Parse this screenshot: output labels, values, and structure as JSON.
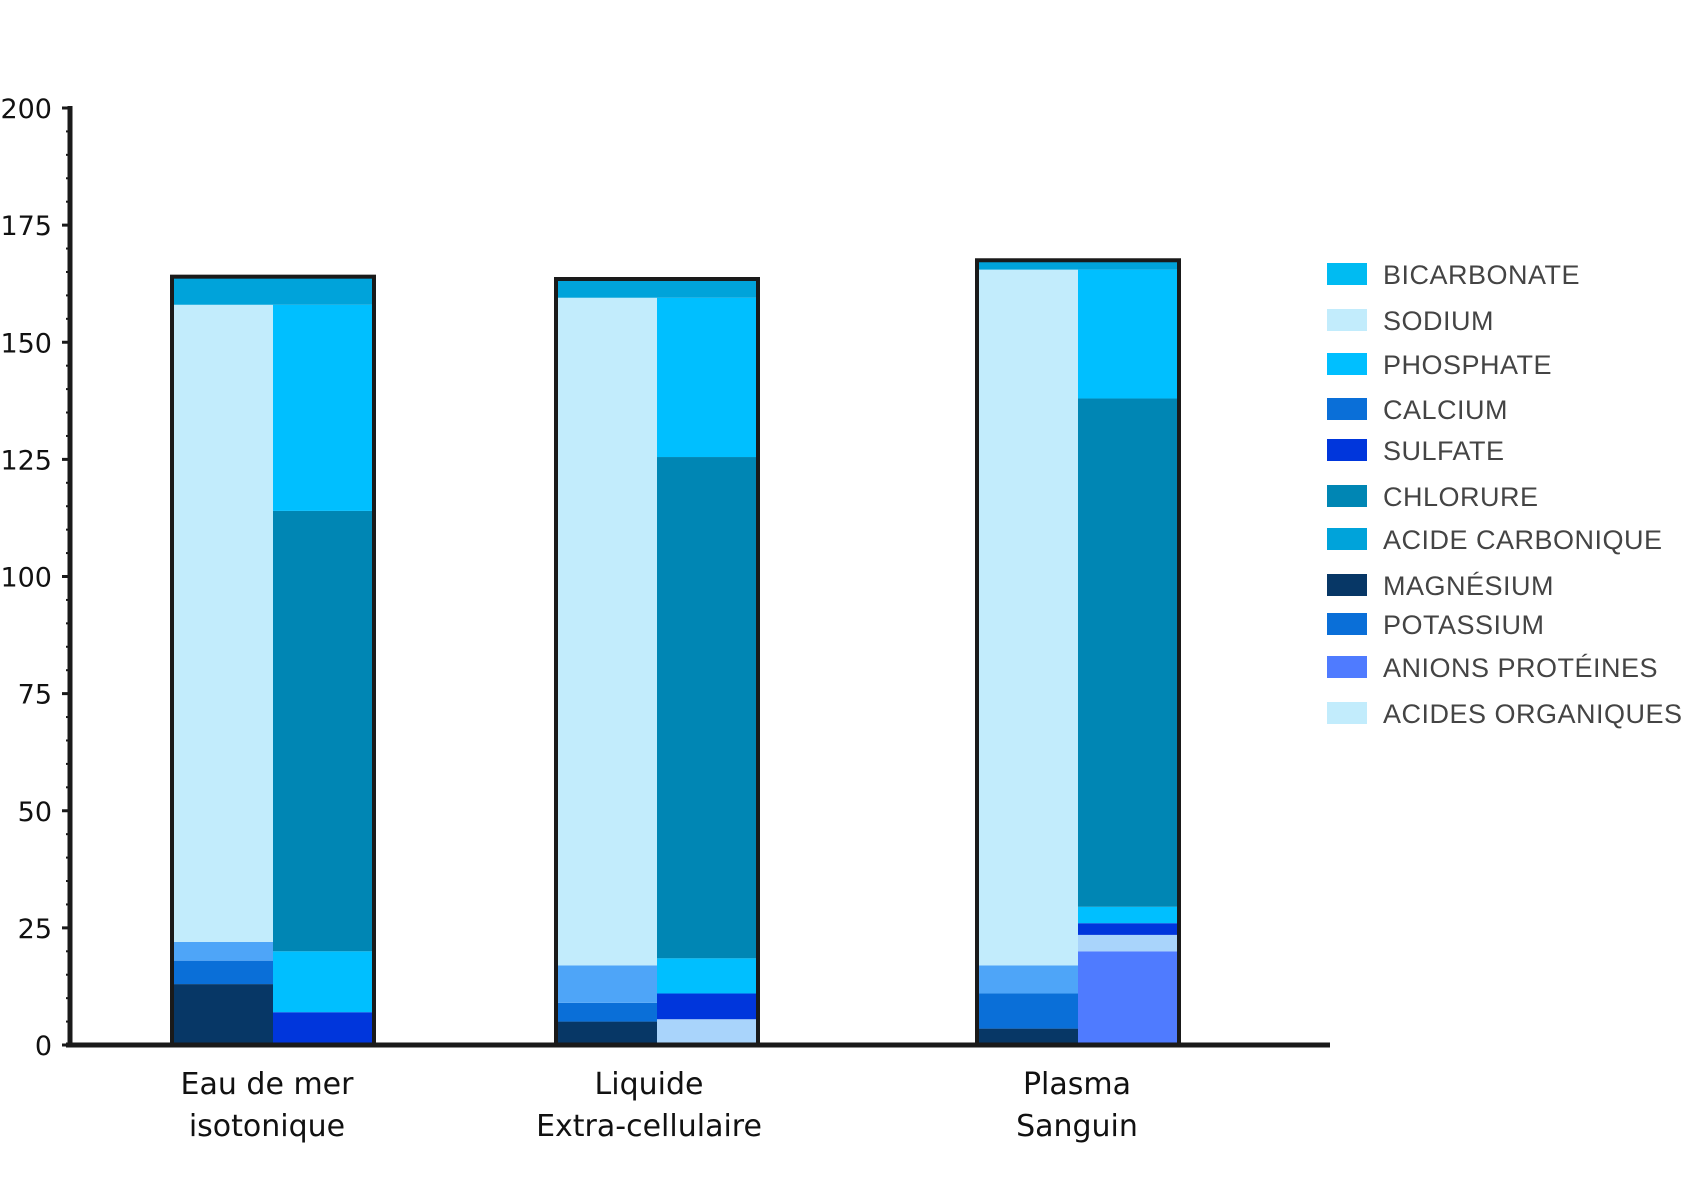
{
  "chart_data": {
    "type": "bar",
    "stacked": true,
    "ylim": [
      0,
      200
    ],
    "yticks": [
      "0",
      "25",
      "50",
      "75",
      "100",
      "125",
      "150",
      "175",
      "200"
    ],
    "grid": false,
    "legend_position": "right",
    "categories": [
      [
        "Eau de mer",
        "isotonique"
      ],
      [
        "Liquide",
        "Extra-cellulaire"
      ],
      [
        "Plasma",
        "Sanguin"
      ]
    ],
    "legend": [
      {
        "name": "BICARBONATE",
        "color": "#00BBF2"
      },
      {
        "name": "SODIUM",
        "color": "#C2ECFC"
      },
      {
        "name": "PHOSPHATE",
        "color": "#00BFFF"
      },
      {
        "name": "CALCIUM",
        "color": "#0A6FD8"
      },
      {
        "name": "SULFATE",
        "color": "#0036DC"
      },
      {
        "name": "CHLORURE",
        "color": "#0086B4"
      },
      {
        "name": "ACIDE CARBONIQUE",
        "color": "#00A3DA"
      },
      {
        "name": "MAGNÉSIUM",
        "color": "#073766"
      },
      {
        "name": "POTASSIUM",
        "color": "#0A6FD8"
      },
      {
        "name": "ANIONS PROTÉINES",
        "color": "#4F7BFF"
      },
      {
        "name": "ACIDES ORGANIQUES",
        "color": "#C2ECFC"
      }
    ],
    "groups": [
      {
        "total": 164,
        "columns": [
          {
            "segments": [
              {
                "series": "MAGNÉSIUM",
                "value": 13,
                "color": "#073766"
              },
              {
                "series": "CALCIUM",
                "value": 5,
                "color": "#0A6FD8"
              },
              {
                "series": "POTASSIUM",
                "value": 4,
                "color": "#4EA5F8"
              },
              {
                "series": "SODIUM",
                "value": 136,
                "color": "#C2ECFC"
              }
            ]
          },
          {
            "segments": [
              {
                "series": "SULFATE",
                "value": 7,
                "color": "#0036DC"
              },
              {
                "series": "BICARBONATE",
                "value": 13,
                "color": "#00BFFF"
              },
              {
                "series": "CHLORURE",
                "value": 94,
                "color": "#0086B4"
              },
              {
                "series": "PHOSPHATE",
                "value": 44,
                "color": "#00BFFF"
              }
            ]
          }
        ],
        "top": {
          "series": "ACIDE CARBONIQUE",
          "value": 6,
          "color": "#00A3DA"
        }
      },
      {
        "total": 163.5,
        "columns": [
          {
            "segments": [
              {
                "series": "MAGNÉSIUM",
                "value": 5,
                "color": "#073766"
              },
              {
                "series": "CALCIUM",
                "value": 4,
                "color": "#0A6FD8"
              },
              {
                "series": "POTASSIUM",
                "value": 8,
                "color": "#4EA5F8"
              },
              {
                "series": "SODIUM",
                "value": 142.5,
                "color": "#C2ECFC"
              }
            ]
          },
          {
            "segments": [
              {
                "series": "ACIDES ORGANIQUES",
                "value": 5.5,
                "color": "#A9D4FB"
              },
              {
                "series": "SULFATE",
                "value": 5.5,
                "color": "#0036DC"
              },
              {
                "series": "BICARBONATE",
                "value": 7.5,
                "color": "#00BFFF"
              },
              {
                "series": "CHLORURE",
                "value": 107,
                "color": "#0086B4"
              },
              {
                "series": "PHOSPHATE",
                "value": 34,
                "color": "#00BFFF"
              }
            ]
          }
        ],
        "top": {
          "series": "ACIDE CARBONIQUE",
          "value": 4,
          "color": "#00A3DA"
        }
      },
      {
        "total": 167.5,
        "columns": [
          {
            "segments": [
              {
                "series": "MAGNÉSIUM",
                "value": 3.5,
                "color": "#073766"
              },
              {
                "series": "CALCIUM",
                "value": 7.5,
                "color": "#0A6FD8"
              },
              {
                "series": "POTASSIUM",
                "value": 6,
                "color": "#4EA5F8"
              },
              {
                "series": "SODIUM",
                "value": 148.5,
                "color": "#C2ECFC"
              }
            ]
          },
          {
            "segments": [
              {
                "series": "ANIONS PROTÉINES",
                "value": 20,
                "color": "#4F7BFF"
              },
              {
                "series": "ACIDES ORGANIQUES",
                "value": 3.5,
                "color": "#A9D4FB"
              },
              {
                "series": "SULFATE",
                "value": 2.5,
                "color": "#0036DC"
              },
              {
                "series": "PHOSPHATE",
                "value": 3.5,
                "color": "#00BFFF"
              },
              {
                "series": "CHLORURE",
                "value": 108.5,
                "color": "#0086B4"
              },
              {
                "series": "BICARBONATE",
                "value": 27.5,
                "color": "#00BFFF"
              }
            ]
          }
        ],
        "top": {
          "series": "ACIDE CARBONIQUE",
          "value": 2,
          "color": "#00A3DA"
        }
      }
    ]
  }
}
